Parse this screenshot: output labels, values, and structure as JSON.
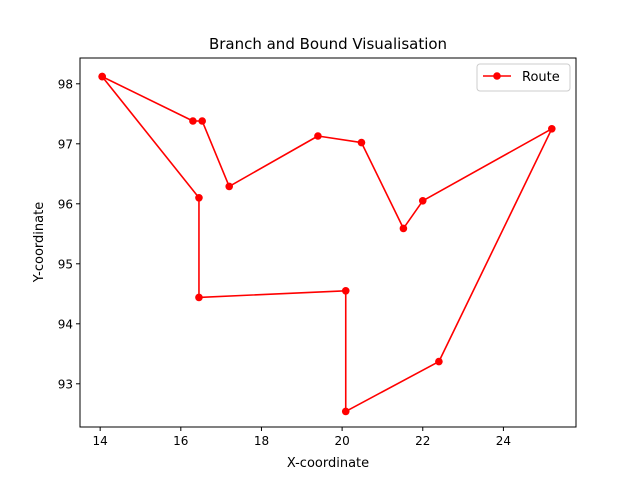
{
  "chart_data": {
    "type": "line",
    "title": "Branch and Bound Visualisation",
    "xlabel": "X-coordinate",
    "ylabel": "Y-coordinate",
    "xlim": [
      13.5,
      25.8
    ],
    "ylim": [
      92.28,
      98.43
    ],
    "xticks": [
      14,
      16,
      18,
      20,
      22,
      24
    ],
    "yticks": [
      93,
      94,
      95,
      96,
      97,
      98
    ],
    "grid": false,
    "legend_position": "top-right",
    "series": [
      {
        "name": "Route",
        "color": "#ff0000",
        "marker": "circle",
        "points": [
          [
            14.05,
            98.12
          ],
          [
            16.3,
            97.38
          ],
          [
            16.53,
            97.38
          ],
          [
            17.2,
            96.29
          ],
          [
            19.4,
            97.13
          ],
          [
            20.48,
            97.02
          ],
          [
            21.52,
            95.59
          ],
          [
            22.0,
            96.05
          ],
          [
            25.2,
            97.25
          ],
          [
            22.4,
            93.37
          ],
          [
            20.09,
            92.54
          ],
          [
            20.09,
            94.55
          ],
          [
            16.45,
            94.44
          ],
          [
            16.45,
            96.1
          ],
          [
            14.05,
            98.12
          ]
        ]
      }
    ]
  }
}
